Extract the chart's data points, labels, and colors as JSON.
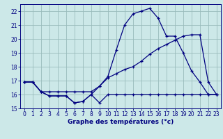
{
  "title": "Graphe des températures (°c)",
  "bg_color": "#cce8e8",
  "line_color": "#000080",
  "grid_color": "#99bbbb",
  "ylim": [
    15,
    22.5
  ],
  "xlim": [
    -0.5,
    23.5
  ],
  "yticks": [
    15,
    16,
    17,
    18,
    19,
    20,
    21,
    22
  ],
  "xticks": [
    0,
    1,
    2,
    3,
    4,
    5,
    6,
    7,
    8,
    9,
    10,
    11,
    12,
    13,
    14,
    15,
    16,
    17,
    18,
    19,
    20,
    21,
    22,
    23
  ],
  "line1_x": [
    0,
    1,
    2,
    3,
    4,
    5,
    6,
    7,
    8,
    9,
    10,
    11,
    12,
    13,
    14,
    15,
    16,
    17,
    18,
    19,
    20,
    21,
    22,
    23
  ],
  "line1_y": [
    16.9,
    16.9,
    16.2,
    15.9,
    15.9,
    15.9,
    15.4,
    15.5,
    16.0,
    15.4,
    16.0,
    16.0,
    16.0,
    16.0,
    16.0,
    16.0,
    16.0,
    16.0,
    16.0,
    16.0,
    16.0,
    16.0,
    16.0,
    16.0
  ],
  "line2_x": [
    0,
    1,
    2,
    3,
    4,
    5,
    6,
    7,
    8,
    9,
    10,
    11,
    12,
    13,
    14,
    15,
    16,
    17,
    18,
    19,
    20,
    21,
    22,
    23
  ],
  "line2_y": [
    16.9,
    16.9,
    16.2,
    16.2,
    16.2,
    16.2,
    16.2,
    16.2,
    16.2,
    16.6,
    17.2,
    17.5,
    17.8,
    18.0,
    18.4,
    18.9,
    19.3,
    19.6,
    19.9,
    20.2,
    20.3,
    20.3,
    16.9,
    16.0
  ],
  "line3_x": [
    0,
    1,
    2,
    3,
    4,
    5,
    6,
    7,
    8,
    9,
    10,
    11,
    12,
    13,
    14,
    15,
    16,
    17,
    18,
    19,
    20,
    21,
    22,
    23
  ],
  "line3_y": [
    16.9,
    16.9,
    16.2,
    15.9,
    15.9,
    15.9,
    15.4,
    15.5,
    16.0,
    16.6,
    17.3,
    19.2,
    21.0,
    21.8,
    22.0,
    22.2,
    21.5,
    20.2,
    20.2,
    19.0,
    17.7,
    16.9,
    16.0,
    16.0
  ]
}
